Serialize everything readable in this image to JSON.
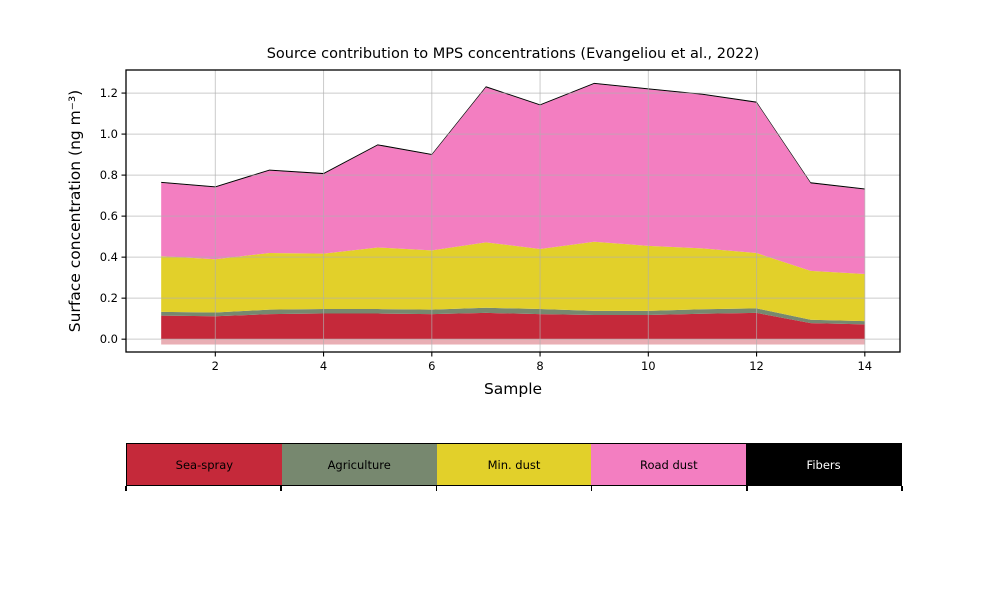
{
  "title": "Source contribution to MPS concentrations (Evangeliou et al., 2022)",
  "chart_data": {
    "type": "area",
    "stacked": true,
    "title": "Source contribution to MPS concentrations (Evangeliou et al., 2022)",
    "xlabel": "Sample",
    "ylabel": "Surface concentration (ng m⁻³)",
    "x": [
      1,
      2,
      3,
      4,
      5,
      6,
      7,
      8,
      9,
      10,
      11,
      12,
      13,
      14
    ],
    "series": [
      {
        "name": "Sea-spray",
        "color": "#c5293a",
        "values": [
          0.115,
          0.112,
          0.122,
          0.125,
          0.125,
          0.122,
          0.128,
          0.122,
          0.118,
          0.118,
          0.124,
          0.128,
          0.078,
          0.072
        ]
      },
      {
        "name": "Agriculture",
        "color": "#77886f",
        "values": [
          0.018,
          0.018,
          0.022,
          0.022,
          0.022,
          0.022,
          0.025,
          0.025,
          0.02,
          0.02,
          0.022,
          0.022,
          0.017,
          0.016
        ]
      },
      {
        "name": "Min. dust",
        "color": "#e2d02a",
        "values": [
          0.272,
          0.26,
          0.276,
          0.27,
          0.3,
          0.289,
          0.319,
          0.293,
          0.337,
          0.317,
          0.297,
          0.27,
          0.238,
          0.23
        ]
      },
      {
        "name": "Road dust",
        "color": "#f37ec1",
        "values": [
          0.357,
          0.35,
          0.402,
          0.388,
          0.498,
          0.465,
          0.756,
          0.7,
          0.77,
          0.763,
          0.749,
          0.733,
          0.427,
          0.412
        ]
      },
      {
        "name": "Fibers",
        "color": "#000000",
        "values": [
          0.005,
          0.005,
          0.005,
          0.005,
          0.005,
          0.005,
          0.005,
          0.005,
          0.005,
          0.005,
          0.005,
          0.005,
          0.005,
          0.005
        ]
      }
    ],
    "totals": [
      0.767,
      0.745,
      0.827,
      0.81,
      0.95,
      0.903,
      1.233,
      1.145,
      1.25,
      1.223,
      1.197,
      1.158,
      0.765,
      0.735
    ],
    "xticks": [
      2,
      4,
      6,
      8,
      10,
      12,
      14
    ],
    "yticks": [
      "0.0",
      "0.2",
      "0.4",
      "0.6",
      "0.8",
      "1.0",
      "1.2"
    ],
    "xlim": [
      0.35,
      14.65
    ],
    "ylim": [
      -0.0625,
      1.3125
    ],
    "grid": true,
    "grid_color": "#b0b0b0",
    "baseline_strip": {
      "from": 0,
      "to": -0.026,
      "color": "rgba(197,41,58,0.38)"
    },
    "legend_position": "bottom"
  },
  "legend": {
    "items": [
      {
        "label": "Sea-spray",
        "color": "#c5293a",
        "text_color": "#000000"
      },
      {
        "label": "Agriculture",
        "color": "#77886f",
        "text_color": "#000000"
      },
      {
        "label": "Min. dust",
        "color": "#e2d02a",
        "text_color": "#000000"
      },
      {
        "label": "Road dust",
        "color": "#f37ec1",
        "text_color": "#000000"
      },
      {
        "label": "Fibers",
        "color": "#000000",
        "text_color": "#ffffff"
      }
    ]
  }
}
